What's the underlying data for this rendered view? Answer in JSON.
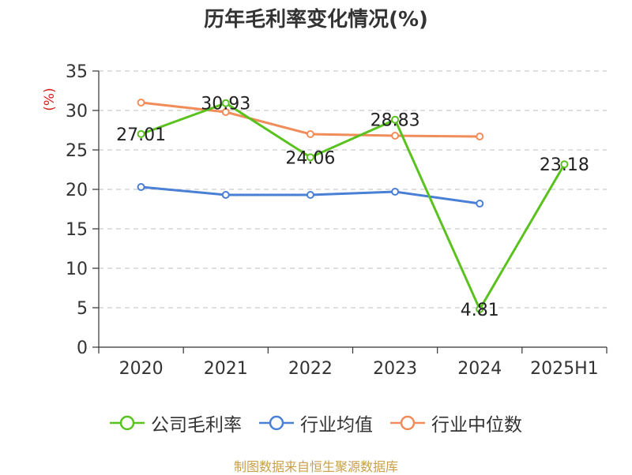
{
  "chart_data": {
    "type": "line",
    "title": "历年毛利率变化情况(%)",
    "ylabel": "(%)",
    "xlabel": "",
    "categories": [
      "2020",
      "2021",
      "2022",
      "2023",
      "2024",
      "2025H1"
    ],
    "ylim": [
      0,
      35
    ],
    "yticks": [
      0,
      5,
      10,
      15,
      20,
      25,
      30,
      35
    ],
    "grid": true,
    "legend_position": "bottom",
    "series": [
      {
        "name": "公司毛利率",
        "color": "#5ac21f",
        "values": [
          27.01,
          30.93,
          24.06,
          28.83,
          4.81,
          23.18
        ],
        "labels": [
          "27.01",
          "30.93",
          "24.06",
          "28.83",
          "4.81",
          "23.18"
        ]
      },
      {
        "name": "行业均值",
        "color": "#4a7fd6",
        "values": [
          20.3,
          19.3,
          19.3,
          19.7,
          18.2,
          null
        ]
      },
      {
        "name": "行业中位数",
        "color": "#f08d5a",
        "values": [
          31.0,
          29.8,
          27.0,
          26.8,
          26.7,
          null
        ]
      }
    ]
  },
  "source_note": "制图数据来自恒生聚源数据库"
}
